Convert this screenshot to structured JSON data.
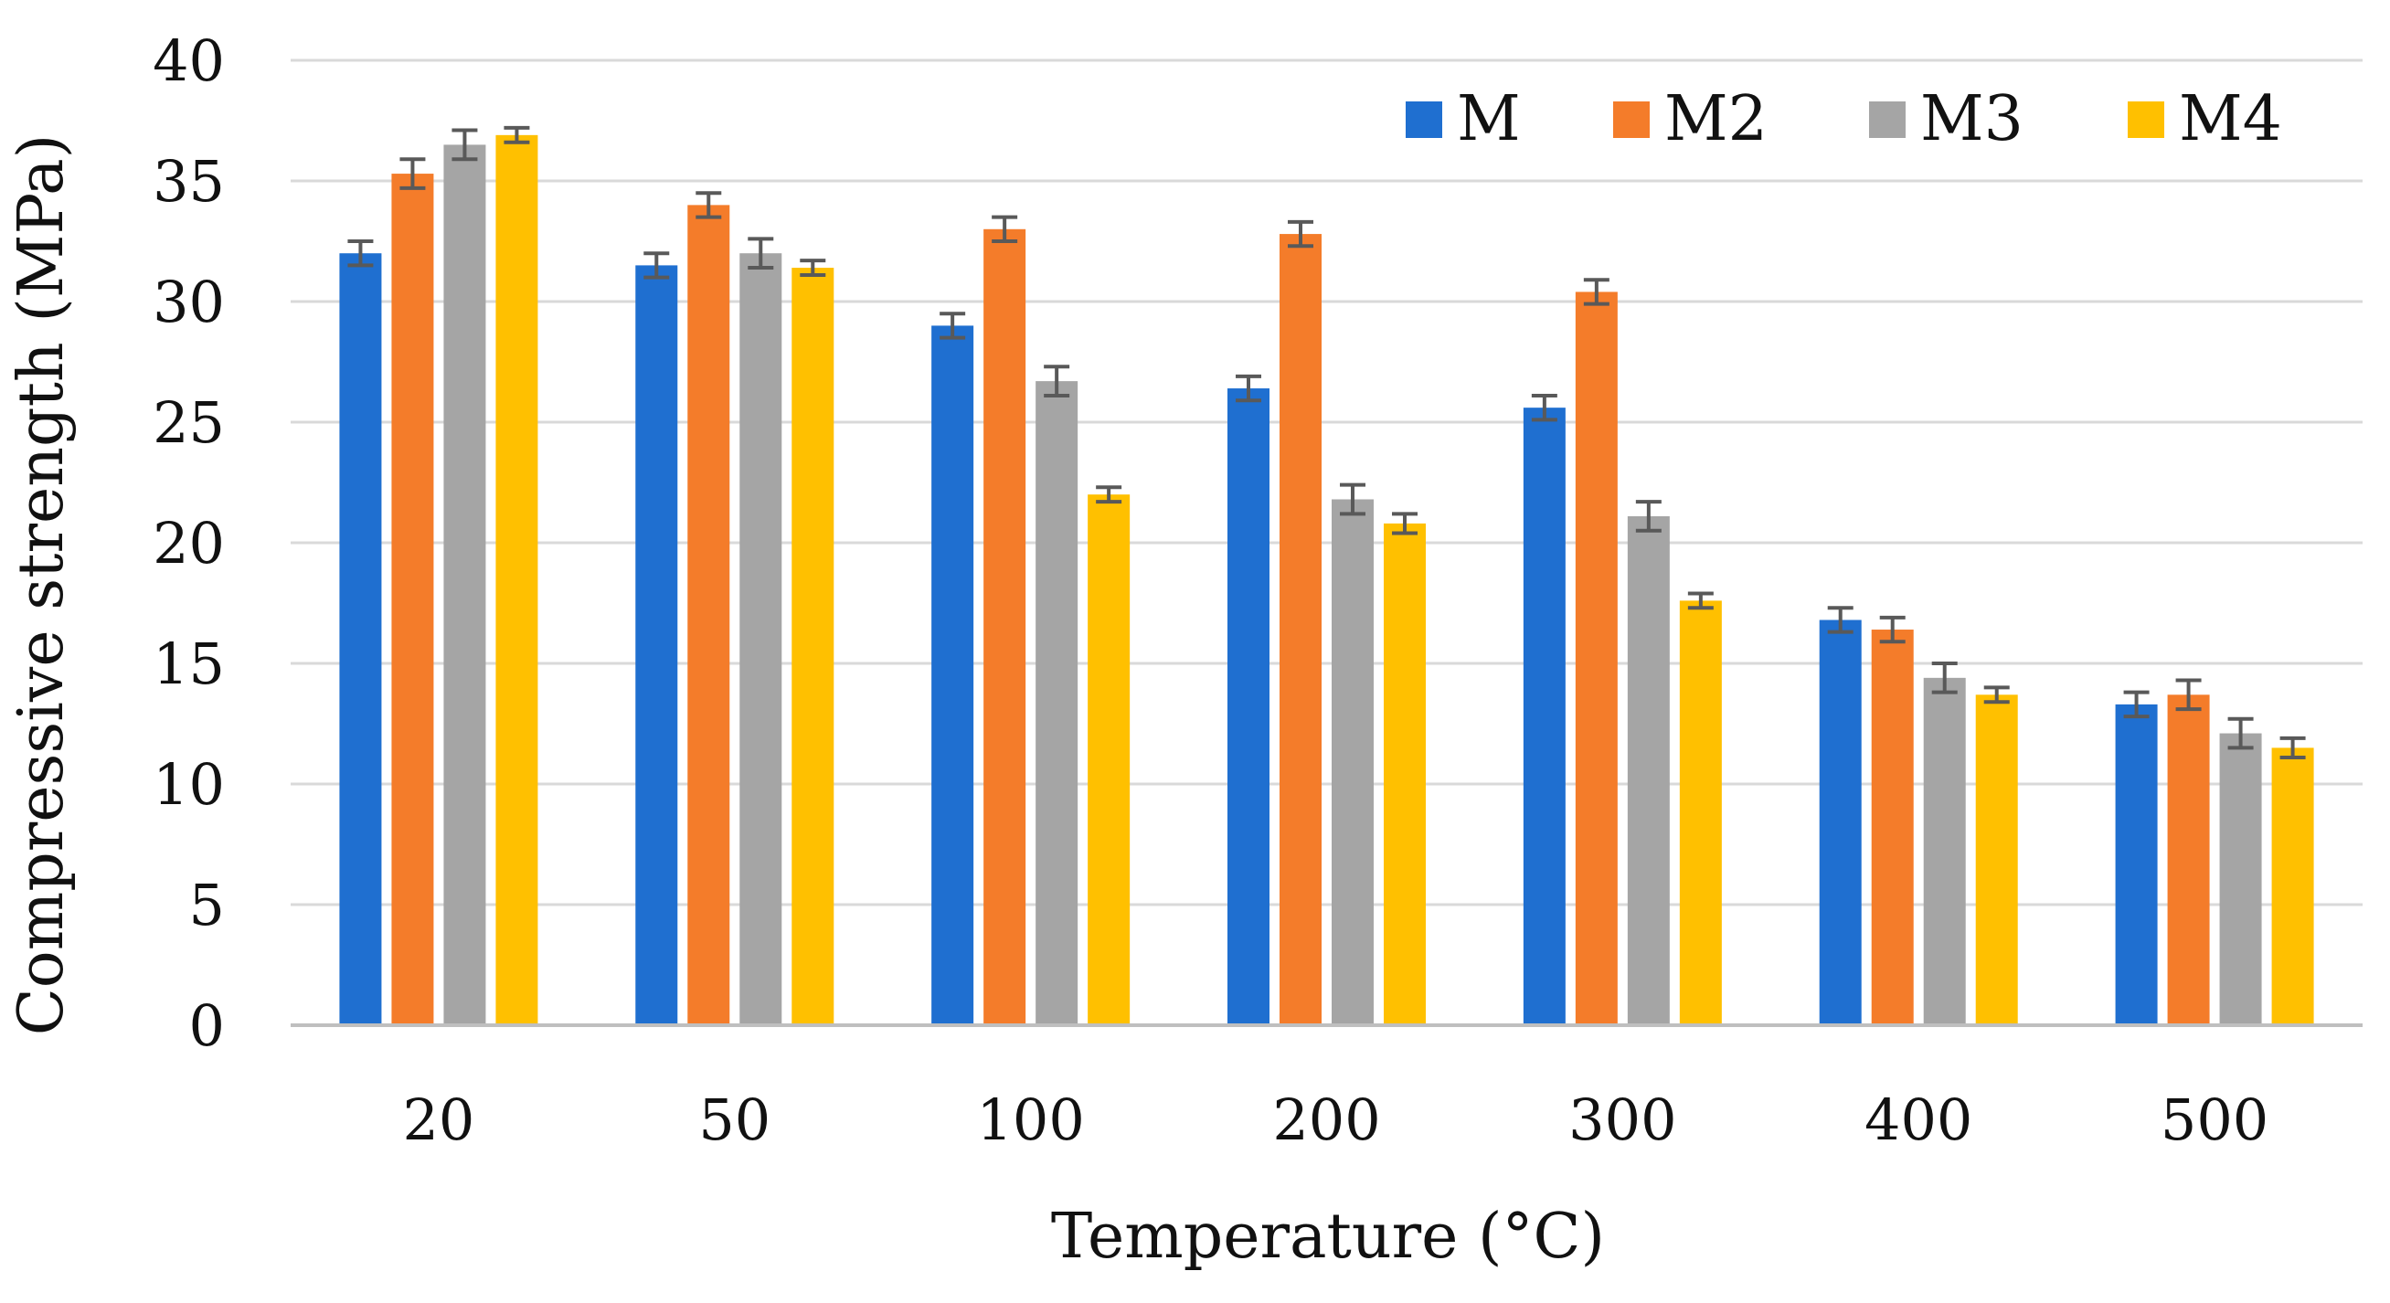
{
  "chart_data": {
    "type": "bar",
    "title": "",
    "xlabel": "Temperature (°C)",
    "ylabel": "Compressive strength (MPa)",
    "categories": [
      "20",
      "50",
      "100",
      "200",
      "300",
      "400",
      "500"
    ],
    "ylim": [
      0,
      40
    ],
    "yticks": [
      0,
      5,
      10,
      15,
      20,
      25,
      30,
      35,
      40
    ],
    "grid": true,
    "legend_position": "top-right",
    "error_bars": true,
    "series": [
      {
        "name": "M",
        "color": "#1F6FD0",
        "values": [
          32.0,
          31.5,
          29.0,
          26.4,
          25.6,
          16.8,
          13.3
        ],
        "errors": [
          0.5,
          0.5,
          0.5,
          0.5,
          0.5,
          0.5,
          0.5
        ]
      },
      {
        "name": "M2",
        "color": "#F47C2A",
        "values": [
          35.3,
          34.0,
          33.0,
          32.8,
          30.4,
          16.4,
          13.7
        ],
        "errors": [
          0.6,
          0.5,
          0.5,
          0.5,
          0.5,
          0.5,
          0.6
        ]
      },
      {
        "name": "M3",
        "color": "#A5A5A5",
        "values": [
          36.5,
          32.0,
          26.7,
          21.8,
          21.1,
          14.4,
          12.1
        ],
        "errors": [
          0.6,
          0.6,
          0.6,
          0.6,
          0.6,
          0.6,
          0.6
        ]
      },
      {
        "name": "M4",
        "color": "#FFC000",
        "values": [
          36.9,
          31.4,
          22.0,
          20.8,
          17.6,
          13.7,
          11.5
        ],
        "errors": [
          0.3,
          0.3,
          0.3,
          0.4,
          0.3,
          0.3,
          0.4
        ]
      }
    ]
  },
  "styles": {
    "grid_color": "#D9D9D9",
    "axis_color": "#BFBFBF",
    "error_color": "#595959",
    "text_color": "#111111"
  }
}
